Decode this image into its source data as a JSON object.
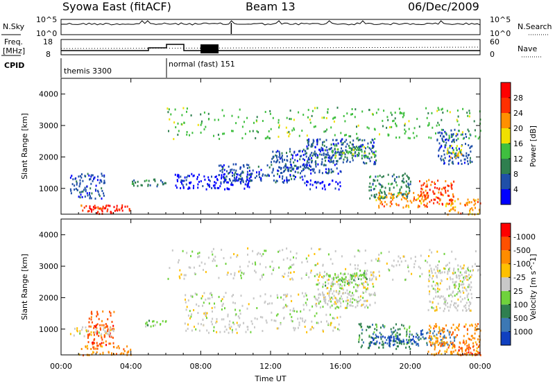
{
  "header": {
    "station": "Syowa East (fitACF)",
    "beam": "Beam 13",
    "date": "06/Dec/2009"
  },
  "noise_panel": {
    "left_label": "N.Sky",
    "right_label": "N.Search",
    "tick_top": "10^5",
    "tick_bottom": "10^0"
  },
  "freq_panel": {
    "left_label_1": "Freq.",
    "left_label_2": "[MHz]",
    "left_tick_top": "18",
    "left_tick_bottom": "8",
    "right_label": "Nave",
    "right_tick_top": "60",
    "right_tick_bottom": "0"
  },
  "cpid_panel": {
    "label": "CPID",
    "segments": [
      {
        "name": "themis 3300",
        "start_hour": 0,
        "end_hour": 6
      },
      {
        "name": "normal (fast) 151",
        "start_hour": 6,
        "end_hour": 24
      }
    ]
  },
  "chart_data": [
    {
      "type": "heatmap",
      "title": "",
      "ylabel": "Slant Range [km]",
      "xlabel": "",
      "x_range_hours": [
        0,
        24
      ],
      "ylim": [
        180,
        4500
      ],
      "y_ticks": [
        "1000",
        "2000",
        "3000",
        "4000"
      ],
      "colorbar_label": "Power [dB]",
      "colorbar_ticks": [
        "4",
        "8",
        "12",
        "16",
        "20",
        "24",
        "28"
      ],
      "colorbar_colors": [
        "#0000ff",
        "#1f4fa8",
        "#2f7f4f",
        "#3fbf3f",
        "#f0e000",
        "#ff9000",
        "#ff3000",
        "#ff0000"
      ],
      "clusters": [
        {
          "t0": 1.5,
          "t1": 3.5,
          "r0": 220,
          "r1": 480,
          "c": 7
        },
        {
          "t0": 1.0,
          "t1": 4.0,
          "r0": 300,
          "r1": 500,
          "c": 6
        },
        {
          "t0": 0.5,
          "t1": 2.5,
          "r0": 700,
          "r1": 1500,
          "c": 1
        },
        {
          "t0": 4.0,
          "t1": 6.0,
          "r0": 1100,
          "r1": 1350,
          "c": 2
        },
        {
          "t0": 6.5,
          "t1": 11.0,
          "r0": 1000,
          "r1": 1500,
          "c": 0
        },
        {
          "t0": 9.0,
          "t1": 14.0,
          "r0": 1200,
          "r1": 1800,
          "c": 1
        },
        {
          "t0": 12.0,
          "t1": 16.0,
          "r0": 1500,
          "r1": 2300,
          "c": 1
        },
        {
          "t0": 14.0,
          "t1": 18.0,
          "r0": 1800,
          "r1": 2600,
          "c": 1
        },
        {
          "t0": 15.5,
          "t1": 18.0,
          "r0": 2000,
          "r1": 2400,
          "c": 3
        },
        {
          "t0": 14.0,
          "t1": 16.0,
          "r0": 1000,
          "r1": 1300,
          "c": 0
        },
        {
          "t0": 17.5,
          "t1": 20.0,
          "r0": 700,
          "r1": 1500,
          "c": 2
        },
        {
          "t0": 18.0,
          "t1": 21.0,
          "r0": 400,
          "r1": 900,
          "c": 5
        },
        {
          "t0": 20.5,
          "t1": 22.5,
          "r0": 500,
          "r1": 1300,
          "c": 6
        },
        {
          "t0": 22.0,
          "t1": 24.0,
          "r0": 200,
          "r1": 700,
          "c": 5
        },
        {
          "t0": 21.5,
          "t1": 23.5,
          "r0": 1800,
          "r1": 2900,
          "c": 1
        },
        {
          "t0": 22.0,
          "t1": 23.0,
          "r0": 2000,
          "r1": 2400,
          "c": 4
        },
        {
          "t0": 6.0,
          "t1": 24.0,
          "r0": 2600,
          "r1": 3600,
          "c": 3
        }
      ]
    },
    {
      "type": "heatmap",
      "title": "",
      "ylabel": "Slant Range [km]",
      "xlabel": "Time UT",
      "x_range_hours": [
        0,
        24
      ],
      "x_ticks": [
        "00:00",
        "04:00",
        "08:00",
        "12:00",
        "16:00",
        "20:00",
        "00:00"
      ],
      "ylim": [
        180,
        4500
      ],
      "y_ticks": [
        "1000",
        "2000",
        "3000",
        "4000"
      ],
      "colorbar_label": "Velocity [m s^-1]",
      "colorbar_ticks": [
        "1000",
        "500",
        "100",
        "25",
        "-25",
        "-100",
        "-500",
        "-1000"
      ],
      "colorbar_colors": [
        "#1040c0",
        "#3c78b4",
        "#2f7f4f",
        "#6fd23c",
        "#c8c8c8",
        "#ffc000",
        "#ff8c00",
        "#ff5000",
        "#ff0000"
      ],
      "clusters": [
        {
          "t0": 1.0,
          "t1": 4.0,
          "r0": 200,
          "r1": 500,
          "c": 6
        },
        {
          "t0": 1.5,
          "t1": 3.0,
          "r0": 500,
          "r1": 1600,
          "c": 7
        },
        {
          "t0": 0.5,
          "t1": 3.0,
          "r0": 800,
          "r1": 1100,
          "c": 4
        },
        {
          "t0": 4.5,
          "t1": 6.0,
          "r0": 1100,
          "r1": 1300,
          "c": 3
        },
        {
          "t0": 7.0,
          "t1": 16.0,
          "r0": 900,
          "r1": 2200,
          "c": 4
        },
        {
          "t0": 14.5,
          "t1": 18.0,
          "r0": 1700,
          "r1": 2800,
          "c": 4
        },
        {
          "t0": 15.0,
          "t1": 17.5,
          "r0": 2400,
          "r1": 2900,
          "c": 3
        },
        {
          "t0": 17.0,
          "t1": 20.0,
          "r0": 400,
          "r1": 1200,
          "c": 2
        },
        {
          "t0": 17.5,
          "t1": 20.5,
          "r0": 500,
          "r1": 800,
          "c": 0
        },
        {
          "t0": 20.0,
          "t1": 22.5,
          "r0": 500,
          "r1": 1000,
          "c": 1
        },
        {
          "t0": 21.0,
          "t1": 24.0,
          "r0": 200,
          "r1": 1200,
          "c": 6
        },
        {
          "t0": 22.5,
          "t1": 24.0,
          "r0": 200,
          "r1": 500,
          "c": 7
        },
        {
          "t0": 21.0,
          "t1": 23.5,
          "r0": 1600,
          "r1": 3000,
          "c": 4
        },
        {
          "t0": 6.0,
          "t1": 24.0,
          "r0": 2600,
          "r1": 3600,
          "c": 4
        }
      ]
    }
  ]
}
